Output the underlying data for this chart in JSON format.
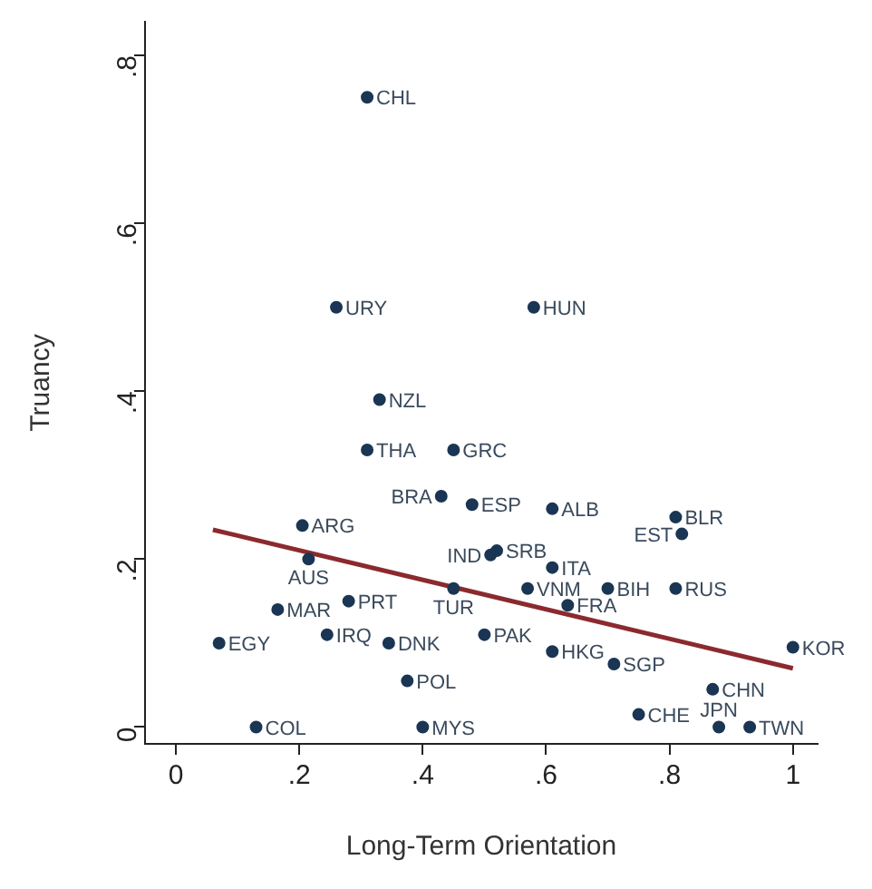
{
  "chart_data": {
    "type": "scatter",
    "xlabel": "Long-Term Orientation",
    "ylabel": "Truancy",
    "xlim": [
      -0.05,
      1.04
    ],
    "ylim": [
      -0.02,
      0.84
    ],
    "xticks": [
      0,
      {
        "value": 0.2,
        "label": ".2"
      },
      {
        "value": 0.4,
        "label": ".4"
      },
      {
        "value": 0.6,
        "label": ".6"
      },
      {
        "value": 0.8,
        "label": ".8"
      },
      1
    ],
    "yticks": [
      0,
      {
        "value": 0.2,
        "label": ".2"
      },
      {
        "value": 0.4,
        "label": ".4"
      },
      {
        "value": 0.6,
        "label": ".6"
      },
      {
        "value": 0.8,
        "label": ".8"
      }
    ],
    "grid": false,
    "legend": false,
    "marker": "circle",
    "series": [
      {
        "color": "#1a3654",
        "x": [
          0.31,
          0.26,
          0.58,
          0.33,
          0.31,
          0.45,
          0.43,
          0.48,
          0.61,
          0.81,
          0.82,
          0.52,
          0.51,
          0.61,
          0.45,
          0.57,
          0.7,
          0.81,
          0.635,
          0.5,
          0.61,
          0.71,
          0.87,
          0.75,
          0.88,
          0.93,
          0.13,
          0.4,
          0.205,
          0.215,
          0.28,
          0.165,
          0.07,
          0.245,
          0.345,
          0.375,
          1.0
        ],
        "values": [
          0.75,
          0.5,
          0.5,
          0.39,
          0.33,
          0.33,
          0.275,
          0.265,
          0.26,
          0.25,
          0.23,
          0.21,
          0.205,
          0.19,
          0.165,
          0.165,
          0.165,
          0.165,
          0.145,
          0.11,
          0.09,
          0.075,
          0.045,
          0.015,
          0.0,
          0.0,
          0.0,
          0.0,
          0.24,
          0.2,
          0.15,
          0.14,
          0.1,
          0.11,
          0.1,
          0.055,
          0.095
        ],
        "value_labels": [
          "CHL",
          "URY",
          "HUN",
          "NZL",
          "THA",
          "GRC",
          "BRA",
          "ESP",
          "ALB",
          "BLR",
          "EST",
          "SRB",
          "IND",
          "ITA",
          "TUR",
          "VNM",
          "BIH",
          "RUS",
          "FRA",
          "PAK",
          "HKG",
          "SGP",
          "CHN",
          "CHE",
          "JPN",
          "TWN",
          "COL",
          "MYS",
          "ARG",
          "AUS",
          "PRT",
          "MAR",
          "EGY",
          "IRQ",
          "DNK",
          "POL",
          "KOR"
        ]
      },
      {
        "type": "line",
        "color": "#8b2a2e",
        "marker": "none",
        "line_style": "solid",
        "x": [
          0.06,
          1.0
        ],
        "values": [
          0.235,
          0.07
        ]
      }
    ]
  }
}
